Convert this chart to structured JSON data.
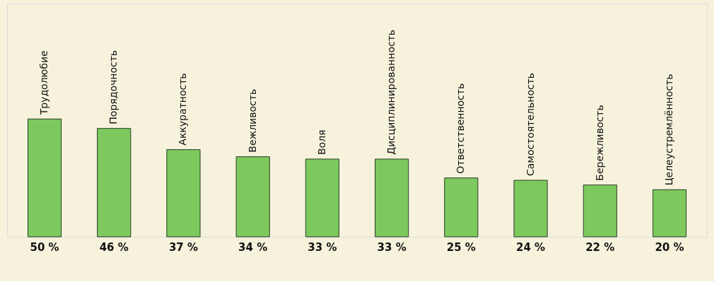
{
  "chart_data": {
    "type": "bar",
    "categories": [
      "Трудолюбие",
      "Порядочность",
      "Аккуратность",
      "Вежливость",
      "Воля",
      "Дисциплинированность",
      "Ответственность",
      "Самостоятельность",
      "Бережливость",
      "Целеустремлённость"
    ],
    "values": [
      50,
      46,
      37,
      34,
      33,
      33,
      25,
      24,
      22,
      20
    ],
    "value_labels": [
      "50 %",
      "46 %",
      "37 %",
      "34 %",
      "33 %",
      "33 %",
      "25 %",
      "24 %",
      "22 %",
      "20 %"
    ],
    "color": "#7dc95e"
  }
}
